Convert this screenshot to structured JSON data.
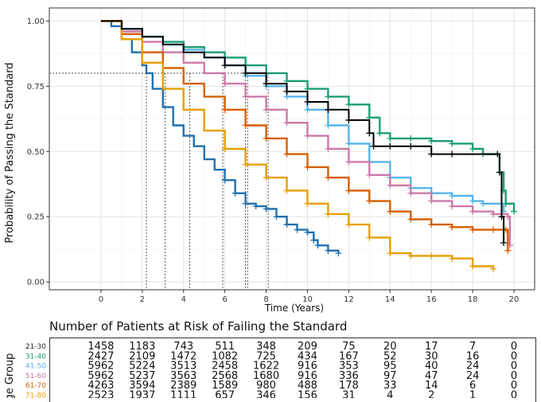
{
  "chart_data": {
    "type": "line",
    "title": "",
    "xlabel": "Time (Years)",
    "ylabel": "Probability of Passing the Standard",
    "xlim": [
      -2.5,
      21
    ],
    "ylim": [
      -0.03,
      1.05
    ],
    "x_ticks": [
      0,
      2,
      4,
      6,
      8,
      10,
      12,
      14,
      16,
      18,
      20
    ],
    "y_ticks": [
      0.0,
      0.25,
      0.5,
      0.75,
      1.0
    ],
    "y_tick_labels": [
      "0.00",
      "0.25",
      "0.50",
      "0.75",
      "1.00"
    ],
    "grid": true,
    "reference_y": 0.8,
    "reference_x": [
      2.2,
      3.1,
      4.3,
      5.9,
      7.0,
      7.1,
      8.1
    ],
    "series": [
      {
        "name": "21-30",
        "color": "#1f6fae",
        "dash": "",
        "points": [
          [
            0,
            1.0
          ],
          [
            0.5,
            0.98
          ],
          [
            1,
            0.93
          ],
          [
            1.5,
            0.88
          ],
          [
            2,
            0.83
          ],
          [
            2.2,
            0.8
          ],
          [
            2.5,
            0.74
          ],
          [
            3,
            0.67
          ],
          [
            3.5,
            0.6
          ],
          [
            4,
            0.56
          ],
          [
            4.5,
            0.52
          ],
          [
            5,
            0.47
          ],
          [
            5.5,
            0.43
          ],
          [
            6,
            0.39
          ],
          [
            6.5,
            0.34
          ],
          [
            7,
            0.3
          ],
          [
            7.5,
            0.29
          ],
          [
            8,
            0.28
          ],
          [
            8.5,
            0.25
          ],
          [
            9,
            0.22
          ],
          [
            9.5,
            0.2
          ],
          [
            10,
            0.19
          ],
          [
            10.3,
            0.16
          ],
          [
            10.5,
            0.14
          ],
          [
            11,
            0.12
          ],
          [
            11.5,
            0.11
          ]
        ]
      },
      {
        "name": "31-40",
        "color": "#1a9e76",
        "dash": "",
        "points": [
          [
            0,
            1.0
          ],
          [
            1,
            0.97
          ],
          [
            2,
            0.94
          ],
          [
            3,
            0.92
          ],
          [
            4,
            0.9
          ],
          [
            5,
            0.88
          ],
          [
            6,
            0.86
          ],
          [
            7,
            0.83
          ],
          [
            8,
            0.8
          ],
          [
            9,
            0.77
          ],
          [
            10,
            0.74
          ],
          [
            11,
            0.71
          ],
          [
            12,
            0.68
          ],
          [
            13,
            0.63
          ],
          [
            13.5,
            0.57
          ],
          [
            14,
            0.55
          ],
          [
            15,
            0.55
          ],
          [
            16,
            0.54
          ],
          [
            17,
            0.53
          ],
          [
            18,
            0.51
          ],
          [
            18.5,
            0.49
          ],
          [
            19.3,
            0.42
          ],
          [
            19.5,
            0.35
          ],
          [
            19.6,
            0.3
          ],
          [
            20,
            0.27
          ]
        ]
      },
      {
        "name": "41-50",
        "color": "#56b4e9",
        "dash": "",
        "points": [
          [
            0,
            1.0
          ],
          [
            1,
            0.97
          ],
          [
            2,
            0.94
          ],
          [
            3,
            0.91
          ],
          [
            4,
            0.89
          ],
          [
            5,
            0.86
          ],
          [
            6,
            0.83
          ],
          [
            7,
            0.79
          ],
          [
            8,
            0.75
          ],
          [
            9,
            0.71
          ],
          [
            10,
            0.66
          ],
          [
            11,
            0.6
          ],
          [
            12,
            0.53
          ],
          [
            13,
            0.46
          ],
          [
            14,
            0.4
          ],
          [
            15,
            0.36
          ],
          [
            16,
            0.34
          ],
          [
            17,
            0.33
          ],
          [
            18,
            0.31
          ],
          [
            18.5,
            0.3
          ],
          [
            19.5,
            0.27
          ]
        ]
      },
      {
        "name": "51-60",
        "color": "#cc79a7",
        "dash": "",
        "points": [
          [
            0,
            1.0
          ],
          [
            1,
            0.96
          ],
          [
            2,
            0.92
          ],
          [
            3,
            0.88
          ],
          [
            4,
            0.84
          ],
          [
            5,
            0.8
          ],
          [
            6,
            0.76
          ],
          [
            7,
            0.71
          ],
          [
            8,
            0.66
          ],
          [
            9,
            0.61
          ],
          [
            10,
            0.56
          ],
          [
            11,
            0.51
          ],
          [
            12,
            0.46
          ],
          [
            13,
            0.41
          ],
          [
            14,
            0.37
          ],
          [
            15,
            0.34
          ],
          [
            16,
            0.31
          ],
          [
            17,
            0.29
          ],
          [
            18,
            0.27
          ],
          [
            19,
            0.26
          ],
          [
            19.7,
            0.25
          ],
          [
            19.8,
            0.14
          ]
        ]
      },
      {
        "name": "61-70",
        "color": "#d55e00",
        "dash": "",
        "points": [
          [
            0,
            1.0
          ],
          [
            1,
            0.95
          ],
          [
            2,
            0.88
          ],
          [
            3,
            0.82
          ],
          [
            4,
            0.76
          ],
          [
            5,
            0.71
          ],
          [
            6,
            0.66
          ],
          [
            7,
            0.6
          ],
          [
            8,
            0.55
          ],
          [
            9,
            0.49
          ],
          [
            10,
            0.44
          ],
          [
            11,
            0.4
          ],
          [
            12,
            0.35
          ],
          [
            13,
            0.31
          ],
          [
            14,
            0.27
          ],
          [
            15,
            0.24
          ],
          [
            16,
            0.22
          ],
          [
            17,
            0.21
          ],
          [
            18,
            0.2
          ],
          [
            19,
            0.2
          ],
          [
            19.6,
            0.2
          ],
          [
            19.7,
            0.12
          ]
        ]
      },
      {
        "name": "71-80",
        "color": "#e69f00",
        "dash": "",
        "points": [
          [
            0,
            1.0
          ],
          [
            1,
            0.93
          ],
          [
            2,
            0.84
          ],
          [
            3,
            0.74
          ],
          [
            4,
            0.66
          ],
          [
            5,
            0.58
          ],
          [
            6,
            0.51
          ],
          [
            7,
            0.45
          ],
          [
            8,
            0.4
          ],
          [
            9,
            0.35
          ],
          [
            10,
            0.3
          ],
          [
            11,
            0.26
          ],
          [
            12,
            0.22
          ],
          [
            13,
            0.17
          ],
          [
            14,
            0.11
          ],
          [
            15,
            0.1
          ],
          [
            16,
            0.1
          ],
          [
            17,
            0.09
          ],
          [
            18,
            0.06
          ],
          [
            19,
            0.05
          ]
        ]
      },
      {
        "name": "",
        "color": "#000000",
        "dash": "",
        "points": [
          [
            0,
            1.0
          ],
          [
            1,
            0.97
          ],
          [
            2,
            0.94
          ],
          [
            3,
            0.91
          ],
          [
            4,
            0.88
          ],
          [
            5,
            0.86
          ],
          [
            6,
            0.83
          ],
          [
            7,
            0.8
          ],
          [
            8,
            0.76
          ],
          [
            9,
            0.73
          ],
          [
            10,
            0.69
          ],
          [
            11,
            0.66
          ],
          [
            12,
            0.62
          ],
          [
            13,
            0.57
          ],
          [
            13.2,
            0.52
          ],
          [
            14,
            0.52
          ],
          [
            15,
            0.52
          ],
          [
            16,
            0.49
          ],
          [
            17,
            0.49
          ],
          [
            19.2,
            0.49
          ],
          [
            19.3,
            0.42
          ],
          [
            19.4,
            0.25
          ],
          [
            19.5,
            0.15
          ]
        ]
      }
    ],
    "risk_table": {
      "title": "Number of Patients at Risk of Failing the Standard",
      "ylabel": "Age Group",
      "rows": [
        {
          "label": "21-30",
          "color": "#222222",
          "values": [
            "1458",
            "1183",
            "743",
            "511",
            "348",
            "209",
            "75",
            "20",
            "17",
            "7",
            "0"
          ]
        },
        {
          "label": "31-40",
          "color": "#1a9e76",
          "values": [
            "2427",
            "2109",
            "1472",
            "1082",
            "725",
            "434",
            "167",
            "52",
            "30",
            "16",
            "0"
          ]
        },
        {
          "label": "41-50",
          "color": "#56b4e9",
          "values": [
            "5962",
            "5224",
            "3513",
            "2458",
            "1622",
            "916",
            "353",
            "95",
            "40",
            "24",
            "0"
          ]
        },
        {
          "label": "51-60",
          "color": "#cc79a7",
          "values": [
            "5962",
            "5237",
            "3563",
            "2568",
            "1680",
            "916",
            "336",
            "97",
            "47",
            "24",
            "0"
          ]
        },
        {
          "label": "61-70",
          "color": "#d55e00",
          "values": [
            "4263",
            "3594",
            "2389",
            "1589",
            "980",
            "488",
            "178",
            "33",
            "14",
            "6",
            "0"
          ]
        },
        {
          "label": "71-80",
          "color": "#e69f00",
          "values": [
            "2523",
            "1937",
            "1111",
            "657",
            "346",
            "156",
            "31",
            "4",
            "2",
            "1",
            "0"
          ]
        }
      ]
    }
  }
}
